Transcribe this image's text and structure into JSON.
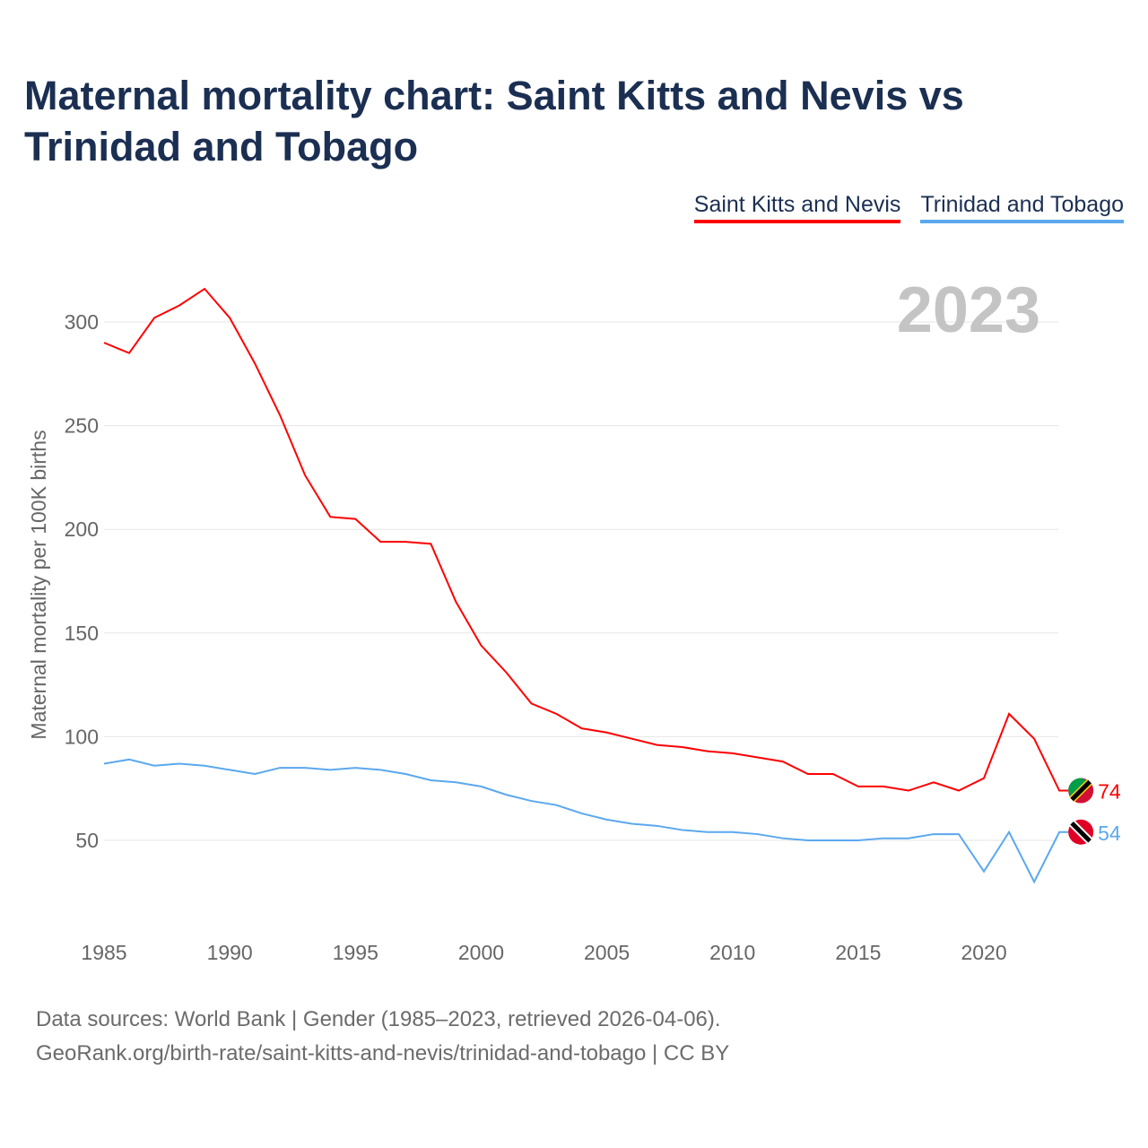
{
  "title": "Maternal mortality chart: Saint Kitts and Nevis vs Trinidad and Tobago",
  "footer": {
    "line1": "Data sources: World Bank | Gender (1985–2023, retrieved 2026-04-06).",
    "line2": "GeoRank.org/birth-rate/saint-kitts-and-nevis/trinidad-and-tobago | CC BY"
  },
  "chart_data": {
    "type": "line",
    "title": "Maternal mortality chart: Saint Kitts and Nevis vs Trinidad and Tobago",
    "xlabel": "",
    "ylabel": "Maternal mortality per 100K births",
    "year_watermark": "2023",
    "x": [
      1985,
      1986,
      1987,
      1988,
      1989,
      1990,
      1991,
      1992,
      1993,
      1994,
      1995,
      1996,
      1997,
      1998,
      1999,
      2000,
      2001,
      2002,
      2003,
      2004,
      2005,
      2006,
      2007,
      2008,
      2009,
      2010,
      2011,
      2012,
      2013,
      2014,
      2015,
      2016,
      2017,
      2018,
      2019,
      2020,
      2021,
      2022,
      2023
    ],
    "xticks": [
      "1985",
      "1990",
      "1995",
      "2000",
      "2005",
      "2010",
      "2015",
      "2020"
    ],
    "yticks": [
      "50",
      "100",
      "150",
      "200",
      "250",
      "300"
    ],
    "ylim": [
      10,
      325
    ],
    "grid": true,
    "legend_position": "top-right",
    "series": [
      {
        "name": "Saint Kitts and Nevis",
        "color": "#ff0000",
        "end_label": "74",
        "values": [
          290,
          285,
          302,
          308,
          316,
          302,
          280,
          255,
          226,
          206,
          205,
          194,
          194,
          193,
          165,
          144,
          131,
          116,
          111,
          104,
          102,
          99,
          96,
          95,
          93,
          92,
          90,
          88,
          82,
          82,
          76,
          76,
          74,
          78,
          74,
          80,
          111,
          99,
          74
        ]
      },
      {
        "name": "Trinidad and Tobago",
        "color": "#5ba8ee",
        "end_label": "54",
        "values": [
          87,
          89,
          86,
          87,
          86,
          84,
          82,
          85,
          85,
          84,
          85,
          84,
          82,
          79,
          78,
          76,
          72,
          69,
          67,
          63,
          60,
          58,
          57,
          55,
          54,
          54,
          53,
          51,
          50,
          50,
          50,
          51,
          51,
          53,
          53,
          35,
          54,
          30,
          54
        ]
      }
    ]
  }
}
